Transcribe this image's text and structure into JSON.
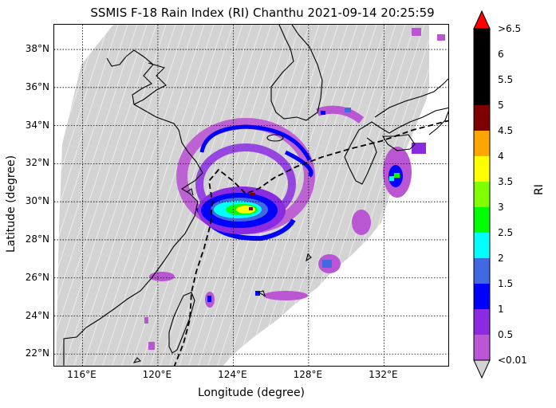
{
  "title": "SSMIS F-18 Rain Index (RI) Chanthu 2021-09-14 20:25:59",
  "axes": {
    "xlabel": "Longitude (degree)",
    "ylabel": "Latitude (degree)",
    "lon_range": [
      114.5,
      135.5
    ],
    "lat_range": [
      21.3,
      39.3
    ],
    "xticks": [
      "116°E",
      "120°E",
      "124°E",
      "128°E",
      "132°E"
    ],
    "xtick_values": [
      116,
      120,
      124,
      128,
      132
    ],
    "yticks": [
      "38°N",
      "36°N",
      "34°N",
      "32°N",
      "30°N",
      "28°N",
      "26°N",
      "24°N",
      "22°N"
    ],
    "ytick_values": [
      38,
      36,
      34,
      32,
      30,
      28,
      26,
      24,
      22
    ],
    "gridlines": "dotted"
  },
  "colorbar": {
    "title": "RI",
    "labels": [
      ">6.5",
      "6",
      "5.5",
      "5",
      "4.5",
      "4",
      "3.5",
      "3",
      "2.5",
      "2",
      "1.5",
      "1",
      "0.5",
      "<0.01"
    ],
    "colors": [
      "#000000",
      "#000000",
      "#000000",
      "#7f0000",
      "#ffa500",
      "#ffff00",
      "#7fff00",
      "#00ff00",
      "#00ffff",
      "#4169e1",
      "#0000ff",
      "#8a2be2",
      "#ba55d3"
    ],
    "over_color": "#ff0000",
    "under_color": "#d3d3d3"
  },
  "colors": {
    "swath": "#d3d3d3",
    "light_rain": "#ba55d3",
    "moderate_rain": "#8a2be2",
    "blue": "#0000ff",
    "royalblue": "#4169e1",
    "cyan": "#00ffff",
    "green": "#00ff00",
    "yellow": "#ffff00",
    "red": "#ff0000",
    "darkred": "#7f0000"
  },
  "map_features": [
    "coastline",
    "track-line"
  ]
}
